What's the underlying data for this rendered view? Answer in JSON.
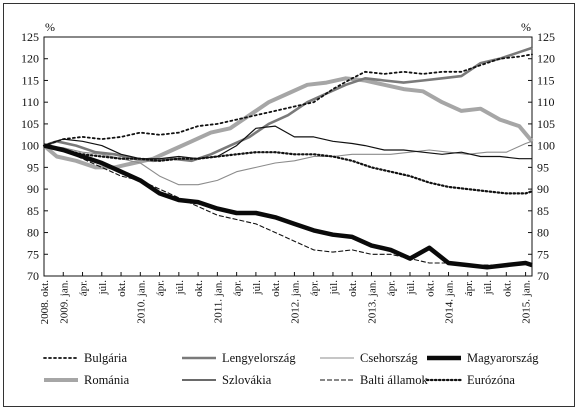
{
  "chart_data": {
    "type": "line",
    "y_unit": "%",
    "ylim": [
      70,
      125
    ],
    "yticks": [
      70,
      75,
      80,
      85,
      90,
      95,
      100,
      105,
      110,
      115,
      120,
      125
    ],
    "x_start": "2008-10",
    "x_end": "2015-02",
    "xtick_labels": [
      "2008. okt.",
      "2009. jan.",
      "ápr.",
      "júl.",
      "okt.",
      "2010. jan.",
      "ápr.",
      "júl.",
      "okt.",
      "2011. jan.",
      "ápr.",
      "júl.",
      "okt.",
      "2012. jan.",
      "ápr.",
      "júl.",
      "okt.",
      "2013. jan.",
      "ápr.",
      "júl.",
      "okt.",
      "2014. jan.",
      "ápr.",
      "júl.",
      "okt.",
      "2015. jan."
    ],
    "grid": false,
    "legend_position": "bottom",
    "series": [
      {
        "name": "Bulgária",
        "style": "dotted",
        "color": "#111111",
        "points": [
          [
            "2008-10",
            100
          ],
          [
            "2009-01",
            101.5
          ],
          [
            "2009-04",
            102
          ],
          [
            "2009-07",
            101.5
          ],
          [
            "2009-10",
            102
          ],
          [
            "2010-01",
            103
          ],
          [
            "2010-04",
            102.5
          ],
          [
            "2010-07",
            103
          ],
          [
            "2010-10",
            104.5
          ],
          [
            "2011-01",
            105
          ],
          [
            "2011-04",
            106
          ],
          [
            "2011-07",
            107
          ],
          [
            "2011-10",
            108
          ],
          [
            "2012-01",
            109
          ],
          [
            "2012-04",
            110
          ],
          [
            "2012-07",
            113
          ],
          [
            "2012-10",
            115.5
          ],
          [
            "2012-12",
            117
          ],
          [
            "2013-03",
            116.5
          ],
          [
            "2013-06",
            117
          ],
          [
            "2013-09",
            116.5
          ],
          [
            "2013-12",
            117
          ],
          [
            "2014-03",
            117
          ],
          [
            "2014-06",
            118.5
          ],
          [
            "2014-09",
            120
          ],
          [
            "2014-12",
            120.5
          ],
          [
            "2015-02",
            121
          ]
        ]
      },
      {
        "name": "Románia",
        "style": "thick-gray",
        "color": "#a6a6a6",
        "points": [
          [
            "2008-10",
            100
          ],
          [
            "2008-12",
            97.5
          ],
          [
            "2009-03",
            96.5
          ],
          [
            "2009-06",
            95
          ],
          [
            "2009-09",
            95
          ],
          [
            "2009-12",
            96
          ],
          [
            "2010-03",
            97
          ],
          [
            "2010-06",
            99
          ],
          [
            "2010-09",
            101
          ],
          [
            "2010-12",
            103
          ],
          [
            "2011-03",
            104
          ],
          [
            "2011-06",
            107
          ],
          [
            "2011-09",
            110
          ],
          [
            "2011-12",
            112
          ],
          [
            "2012-03",
            114
          ],
          [
            "2012-06",
            114.5
          ],
          [
            "2012-09",
            115.5
          ],
          [
            "2012-12",
            115
          ],
          [
            "2013-03",
            114
          ],
          [
            "2013-06",
            113
          ],
          [
            "2013-09",
            112.5
          ],
          [
            "2013-12",
            110
          ],
          [
            "2014-03",
            108
          ],
          [
            "2014-06",
            108.5
          ],
          [
            "2014-09",
            106
          ],
          [
            "2014-12",
            104.5
          ],
          [
            "2015-02",
            101
          ]
        ]
      },
      {
        "name": "Lengyelország",
        "style": "medium-gray",
        "color": "#7a7a7a",
        "points": [
          [
            "2008-10",
            100
          ],
          [
            "2008-12",
            101
          ],
          [
            "2009-03",
            100
          ],
          [
            "2009-06",
            98.5
          ],
          [
            "2009-09",
            98
          ],
          [
            "2009-12",
            97
          ],
          [
            "2010-03",
            96.5
          ],
          [
            "2010-06",
            97
          ],
          [
            "2010-09",
            96.5
          ],
          [
            "2010-12",
            98
          ],
          [
            "2011-03",
            100
          ],
          [
            "2011-06",
            102
          ],
          [
            "2011-09",
            105
          ],
          [
            "2011-12",
            107
          ],
          [
            "2012-03",
            110
          ],
          [
            "2012-06",
            112
          ],
          [
            "2012-09",
            114
          ],
          [
            "2012-12",
            115.5
          ],
          [
            "2013-03",
            115
          ],
          [
            "2013-06",
            114.5
          ],
          [
            "2013-09",
            115
          ],
          [
            "2013-12",
            115.5
          ],
          [
            "2014-03",
            116
          ],
          [
            "2014-06",
            119
          ],
          [
            "2014-09",
            120
          ],
          [
            "2014-12",
            121.5
          ],
          [
            "2015-02",
            122.5
          ]
        ]
      },
      {
        "name": "Szlovákia",
        "style": "thin-solid",
        "color": "#111111",
        "points": [
          [
            "2008-10",
            100
          ],
          [
            "2009-01",
            101.5
          ],
          [
            "2009-04",
            101
          ],
          [
            "2009-07",
            100
          ],
          [
            "2009-10",
            98
          ],
          [
            "2010-01",
            97
          ],
          [
            "2010-04",
            97
          ],
          [
            "2010-07",
            97.5
          ],
          [
            "2010-10",
            97
          ],
          [
            "2011-01",
            97.5
          ],
          [
            "2011-04",
            100
          ],
          [
            "2011-07",
            104
          ],
          [
            "2011-10",
            104.5
          ],
          [
            "2012-01",
            102
          ],
          [
            "2012-04",
            102
          ],
          [
            "2012-07",
            101
          ],
          [
            "2012-10",
            100.5
          ],
          [
            "2012-12",
            100
          ],
          [
            "2013-03",
            99
          ],
          [
            "2013-06",
            99
          ],
          [
            "2013-09",
            98.5
          ],
          [
            "2013-12",
            98
          ],
          [
            "2014-03",
            98.5
          ],
          [
            "2014-06",
            97.5
          ],
          [
            "2014-09",
            97.5
          ],
          [
            "2014-12",
            97
          ],
          [
            "2015-02",
            97
          ]
        ]
      },
      {
        "name": "Csehország",
        "style": "thin-gray",
        "color": "#8c8c8c",
        "points": [
          [
            "2008-10",
            100
          ],
          [
            "2009-01",
            99.5
          ],
          [
            "2009-04",
            98.5
          ],
          [
            "2009-07",
            98
          ],
          [
            "2009-10",
            97
          ],
          [
            "2010-01",
            96
          ],
          [
            "2010-04",
            93
          ],
          [
            "2010-07",
            91
          ],
          [
            "2010-10",
            91
          ],
          [
            "2011-01",
            92
          ],
          [
            "2011-04",
            94
          ],
          [
            "2011-07",
            95
          ],
          [
            "2011-10",
            96
          ],
          [
            "2012-01",
            96.5
          ],
          [
            "2012-04",
            97.5
          ],
          [
            "2012-07",
            97.5
          ],
          [
            "2012-10",
            98
          ],
          [
            "2013-01",
            98
          ],
          [
            "2013-04",
            98
          ],
          [
            "2013-07",
            98.5
          ],
          [
            "2013-10",
            99
          ],
          [
            "2014-01",
            98.5
          ],
          [
            "2014-04",
            98
          ],
          [
            "2014-07",
            98.5
          ],
          [
            "2014-10",
            98.5
          ],
          [
            "2015-01",
            100.5
          ],
          [
            "2015-02",
            101
          ]
        ]
      },
      {
        "name": "Balti államok",
        "style": "thin-dashed",
        "color": "#111111",
        "points": [
          [
            "2008-10",
            100
          ],
          [
            "2009-01",
            99
          ],
          [
            "2009-04",
            97
          ],
          [
            "2009-07",
            95
          ],
          [
            "2009-10",
            93
          ],
          [
            "2010-01",
            92
          ],
          [
            "2010-04",
            90
          ],
          [
            "2010-07",
            88
          ],
          [
            "2010-10",
            86
          ],
          [
            "2011-01",
            84
          ],
          [
            "2011-04",
            83
          ],
          [
            "2011-07",
            82
          ],
          [
            "2011-10",
            80
          ],
          [
            "2012-01",
            78
          ],
          [
            "2012-04",
            76
          ],
          [
            "2012-07",
            75.5
          ],
          [
            "2012-10",
            76
          ],
          [
            "2013-01",
            75
          ],
          [
            "2013-04",
            75
          ],
          [
            "2013-07",
            74
          ],
          [
            "2013-10",
            73
          ],
          [
            "2014-01",
            73
          ],
          [
            "2014-04",
            72.5
          ],
          [
            "2014-07",
            72.5
          ],
          [
            "2014-10",
            72.5
          ],
          [
            "2015-01",
            73
          ],
          [
            "2015-02",
            72.5
          ]
        ]
      },
      {
        "name": "Magyarország",
        "style": "thick-black",
        "color": "#0a0a0a",
        "points": [
          [
            "2008-10",
            100
          ],
          [
            "2009-01",
            99
          ],
          [
            "2009-04",
            97.5
          ],
          [
            "2009-07",
            96
          ],
          [
            "2009-10",
            94
          ],
          [
            "2010-01",
            92
          ],
          [
            "2010-04",
            89
          ],
          [
            "2010-07",
            87.5
          ],
          [
            "2010-10",
            87
          ],
          [
            "2011-01",
            85.5
          ],
          [
            "2011-04",
            84.5
          ],
          [
            "2011-07",
            84.5
          ],
          [
            "2011-10",
            83.5
          ],
          [
            "2012-01",
            82
          ],
          [
            "2012-04",
            80.5
          ],
          [
            "2012-07",
            79.5
          ],
          [
            "2012-10",
            79
          ],
          [
            "2013-01",
            77
          ],
          [
            "2013-04",
            76
          ],
          [
            "2013-07",
            74
          ],
          [
            "2013-10",
            76.5
          ],
          [
            "2014-01",
            73
          ],
          [
            "2014-04",
            72.5
          ],
          [
            "2014-07",
            72
          ],
          [
            "2014-10",
            72.5
          ],
          [
            "2015-01",
            73
          ],
          [
            "2015-02",
            72.5
          ]
        ]
      },
      {
        "name": "Eurózóna",
        "style": "dash-dot-heavy",
        "color": "#111111",
        "points": [
          [
            "2008-10",
            100
          ],
          [
            "2009-01",
            99
          ],
          [
            "2009-04",
            98
          ],
          [
            "2009-07",
            97.5
          ],
          [
            "2009-10",
            97
          ],
          [
            "2010-01",
            97
          ],
          [
            "2010-04",
            96.5
          ],
          [
            "2010-07",
            97
          ],
          [
            "2010-10",
            97
          ],
          [
            "2011-01",
            97.5
          ],
          [
            "2011-04",
            98
          ],
          [
            "2011-07",
            98.5
          ],
          [
            "2011-10",
            98.5
          ],
          [
            "2012-01",
            98
          ],
          [
            "2012-04",
            98
          ],
          [
            "2012-07",
            97.5
          ],
          [
            "2012-10",
            96.5
          ],
          [
            "2013-01",
            95
          ],
          [
            "2013-04",
            94
          ],
          [
            "2013-07",
            93
          ],
          [
            "2013-10",
            91.5
          ],
          [
            "2014-01",
            90.5
          ],
          [
            "2014-04",
            90
          ],
          [
            "2014-07",
            89.5
          ],
          [
            "2014-10",
            89
          ],
          [
            "2015-01",
            89
          ],
          [
            "2015-02",
            89.5
          ]
        ]
      }
    ]
  }
}
